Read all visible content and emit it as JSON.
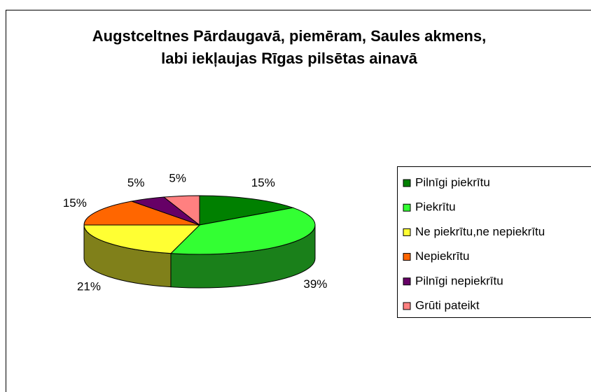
{
  "chart_data": {
    "type": "pie",
    "title": "Augstceltnes Pārdaugavā, piemēram, Saules akmens, labi iekļaujas Rīgas pilsētas ainavā",
    "categories": [
      "Pilnīgi piekrītu",
      "Piekrītu",
      "Ne piekrītu,ne nepiekrītu",
      "Nepiekrītu",
      "Pilnīgi nepiekrītu",
      "Grūti pateikt"
    ],
    "values": [
      15,
      39,
      21,
      15,
      5,
      5
    ],
    "value_labels": [
      "15%",
      "39%",
      "21%",
      "15%",
      "5%",
      "5%"
    ],
    "colors": [
      "#008000",
      "#33ff33",
      "#ffff33",
      "#ff6600",
      "#660066",
      "#ff8080"
    ],
    "legend": "right"
  }
}
